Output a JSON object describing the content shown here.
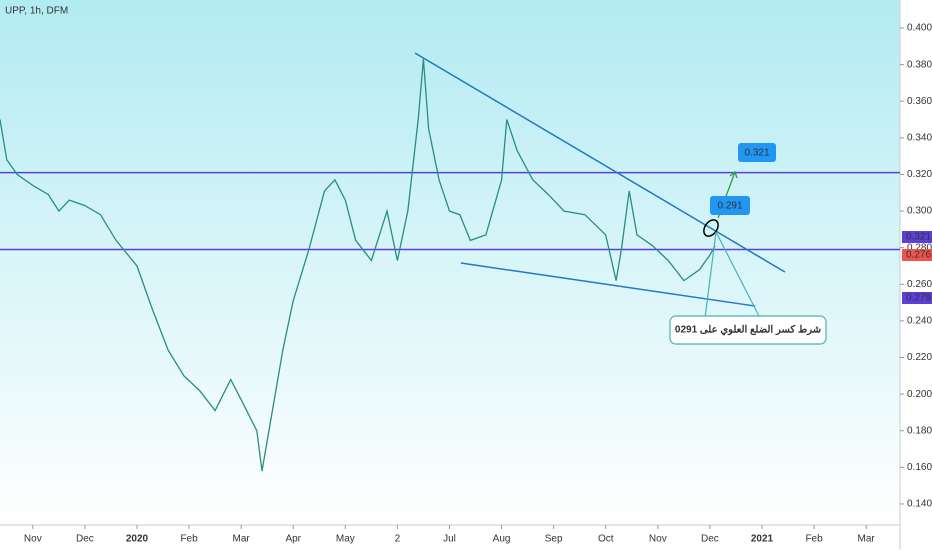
{
  "chart_data": {
    "type": "line",
    "title": "UPP, 1h, DFM",
    "color": "#2a8c82",
    "x": [
      -0.63,
      -0.5,
      -0.3,
      0,
      0.3,
      0.5,
      0.7,
      1.0,
      1.3,
      1.6,
      2.0,
      2.3,
      2.6,
      2.9,
      3.2,
      3.5,
      3.8,
      4.0,
      4.3,
      4.4,
      4.6,
      4.8,
      5.0,
      5.3,
      5.6,
      5.8,
      6.0,
      6.2,
      6.5,
      6.8,
      7.0,
      7.2,
      7.4,
      7.5,
      7.6,
      7.8,
      8.0,
      8.2,
      8.4,
      8.7,
      9.0,
      9.1,
      9.3,
      9.6,
      9.9,
      10.2,
      10.6,
      11.0,
      11.2,
      11.3,
      11.45,
      11.6,
      11.9,
      12.2,
      12.5,
      12.8,
      13.0,
      13.1
    ],
    "values": [
      0.35,
      0.328,
      0.32,
      0.314,
      0.309,
      0.3,
      0.306,
      0.303,
      0.298,
      0.284,
      0.27,
      0.246,
      0.224,
      0.21,
      0.202,
      0.191,
      0.208,
      0.197,
      0.18,
      0.158,
      0.191,
      0.224,
      0.251,
      0.279,
      0.311,
      0.317,
      0.306,
      0.284,
      0.273,
      0.3,
      0.273,
      0.3,
      0.35,
      0.383,
      0.345,
      0.317,
      0.3,
      0.298,
      0.284,
      0.287,
      0.317,
      0.35,
      0.333,
      0.317,
      0.309,
      0.3,
      0.298,
      0.287,
      0.262,
      0.279,
      0.311,
      0.287,
      0.281,
      0.273,
      0.262,
      0.268,
      0.276,
      0.281
    ],
    "xlim": [
      -0.63,
      16.65
    ],
    "xticks": [
      {
        "value": 0,
        "label": "Nov"
      },
      {
        "value": 1,
        "label": "Dec"
      },
      {
        "value": 2,
        "label": "2020"
      },
      {
        "value": 3,
        "label": "Feb"
      },
      {
        "value": 4,
        "label": "Mar"
      },
      {
        "value": 5,
        "label": "Apr"
      },
      {
        "value": 6,
        "label": "May"
      },
      {
        "value": 7,
        "label": "2"
      },
      {
        "value": 8,
        "label": "Jul"
      },
      {
        "value": 9,
        "label": "Aug"
      },
      {
        "value": 10,
        "label": "Sep"
      },
      {
        "value": 11,
        "label": "Oct"
      },
      {
        "value": 12,
        "label": "Nov"
      },
      {
        "value": 13,
        "label": "Dec"
      },
      {
        "value": 14,
        "label": "2021"
      },
      {
        "value": 15,
        "label": "Feb"
      },
      {
        "value": 16,
        "label": "Mar"
      }
    ],
    "ylim": [
      0.1285,
      0.4153
    ],
    "yticks": [
      {
        "value": 0.14,
        "label": "0.140"
      },
      {
        "value": 0.16,
        "label": "0.160"
      },
      {
        "value": 0.18,
        "label": "0.180"
      },
      {
        "value": 0.2,
        "label": "0.200"
      },
      {
        "value": 0.22,
        "label": "0.220"
      },
      {
        "value": 0.24,
        "label": "0.240"
      },
      {
        "value": 0.26,
        "label": "0.260"
      },
      {
        "value": 0.28,
        "label": "0.280"
      },
      {
        "value": 0.3,
        "label": "0.300"
      },
      {
        "value": 0.32,
        "label": "0.320"
      },
      {
        "value": 0.34,
        "label": "0.340"
      },
      {
        "value": 0.36,
        "label": "0.360"
      },
      {
        "value": 0.38,
        "label": "0.380"
      },
      {
        "value": 0.4,
        "label": "0.400"
      }
    ],
    "levels": [
      0.321,
      0.279
    ],
    "level_color": "#5b3fd6",
    "trend_color": "#1f78c8",
    "trendlines": [
      {
        "x": [
          7.34,
          14.44
        ],
        "values": [
          0.3863,
          0.2667
        ]
      },
      {
        "x": [
          8.22,
          13.87
        ],
        "values": [
          0.2716,
          0.2481
        ]
      }
    ],
    "price_tags": [
      {
        "value": 0.321,
        "color": "#5b3fd6"
      },
      {
        "value": 0.276,
        "color": "#ef5350"
      },
      {
        "value": 0.279,
        "color": "#5b3fd6"
      }
    ],
    "callouts": [
      0.291,
      0.321
    ],
    "annotation": "شرط كسر الضلع العلوي على 0291"
  }
}
